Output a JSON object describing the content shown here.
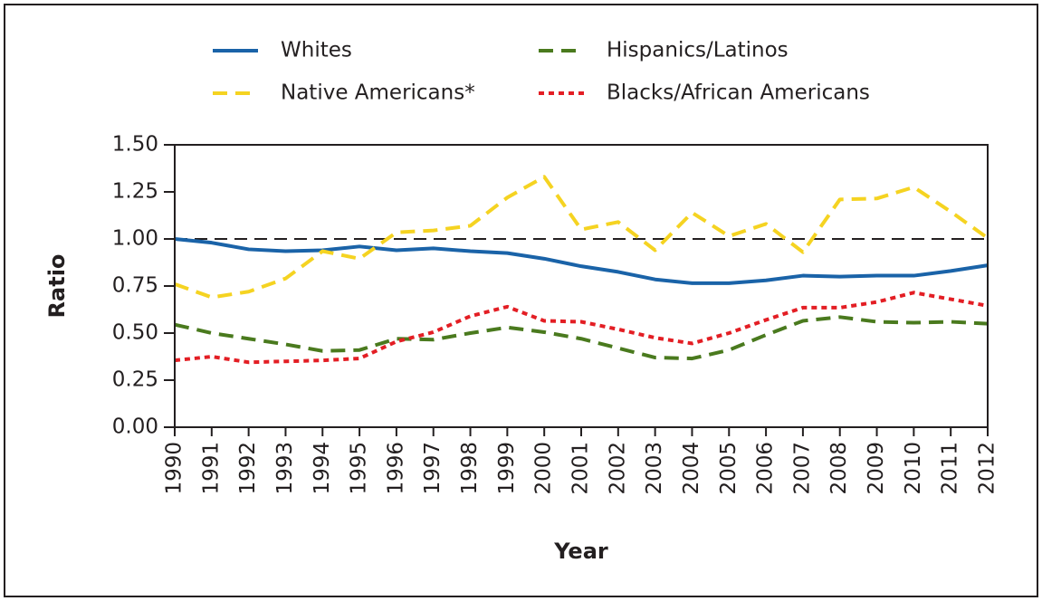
{
  "chart_data": {
    "type": "line",
    "x_label": "Year",
    "y_label": "Ratio",
    "categories": [
      "1990",
      "1991",
      "1992",
      "1993",
      "1994",
      "1995",
      "1996",
      "1997",
      "1998",
      "1999",
      "2000",
      "2001",
      "2002",
      "2003",
      "2004",
      "2005",
      "2006",
      "2007",
      "2008",
      "2009",
      "2010",
      "2011",
      "2012"
    ],
    "series": [
      {
        "name": "Whites",
        "color": "#1a63a8",
        "style": "solid",
        "values": [
          1.0,
          0.98,
          0.945,
          0.935,
          0.94,
          0.96,
          0.94,
          0.95,
          0.935,
          0.925,
          0.895,
          0.855,
          0.825,
          0.785,
          0.765,
          0.765,
          0.78,
          0.805,
          0.8,
          0.805,
          0.805,
          0.83,
          0.86
        ]
      },
      {
        "name": "Hispanics/Latinos",
        "color": "#4a7a1e",
        "style": "dashed",
        "values": [
          0.545,
          0.5,
          0.47,
          0.44,
          0.405,
          0.41,
          0.47,
          0.465,
          0.5,
          0.53,
          0.505,
          0.47,
          0.42,
          0.37,
          0.365,
          0.41,
          0.49,
          0.565,
          0.585,
          0.56,
          0.555,
          0.56,
          0.55
        ]
      },
      {
        "name": "Native Americans*",
        "color": "#f5d321",
        "style": "dashed",
        "values": [
          0.76,
          0.69,
          0.72,
          0.79,
          0.935,
          0.895,
          1.035,
          1.045,
          1.07,
          1.22,
          1.33,
          1.05,
          1.09,
          0.94,
          1.14,
          1.015,
          1.08,
          0.93,
          1.21,
          1.215,
          1.275,
          1.145,
          1.005
        ]
      },
      {
        "name": "Blacks/African Americans",
        "color": "#e31e24",
        "style": "dotted",
        "values": [
          0.355,
          0.375,
          0.345,
          0.35,
          0.355,
          0.365,
          0.455,
          0.505,
          0.59,
          0.64,
          0.565,
          0.56,
          0.52,
          0.475,
          0.445,
          0.5,
          0.57,
          0.635,
          0.635,
          0.665,
          0.715,
          0.68,
          0.645
        ]
      }
    ],
    "ylim": [
      0,
      1.5
    ],
    "yticks": [
      {
        "value": 0,
        "label": "0.00"
      },
      {
        "value": 0.25,
        "label": "0.25"
      },
      {
        "value": 0.5,
        "label": "0.50"
      },
      {
        "value": 0.75,
        "label": "0.75"
      },
      {
        "value": 1,
        "label": "1.00"
      },
      {
        "value": 1.25,
        "label": "1.25"
      },
      {
        "value": 1.5,
        "label": "1.50"
      }
    ],
    "reference_line": 1,
    "legend": "top"
  }
}
